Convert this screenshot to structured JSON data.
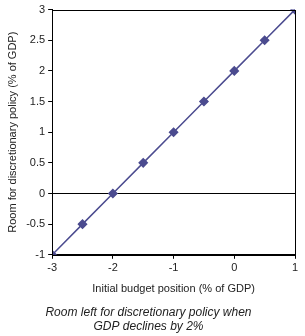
{
  "chart_data": {
    "type": "line",
    "title": "Room left for discretionary policy when GDP declines by 2%",
    "x_label": "Initial budget position (% of GDP)",
    "y_label": "Room for discretionary policy (% of GDP)",
    "x": [
      -3,
      -2.5,
      -2,
      -1.5,
      -1,
      -0.5,
      0,
      0.5,
      1
    ],
    "values": [
      -1,
      -0.5,
      0,
      0.5,
      1,
      1.5,
      2,
      2.5,
      3
    ],
    "color": "#4b4b8f",
    "marker": "diamond",
    "xlim": [
      -3,
      1
    ],
    "ylim": [
      -1,
      3
    ],
    "xticks": [
      -3,
      -2,
      -1,
      0,
      1
    ],
    "yticks": [
      -1,
      -0.5,
      0,
      0.5,
      1,
      1.5,
      2,
      2.5,
      3
    ],
    "grid": false
  }
}
